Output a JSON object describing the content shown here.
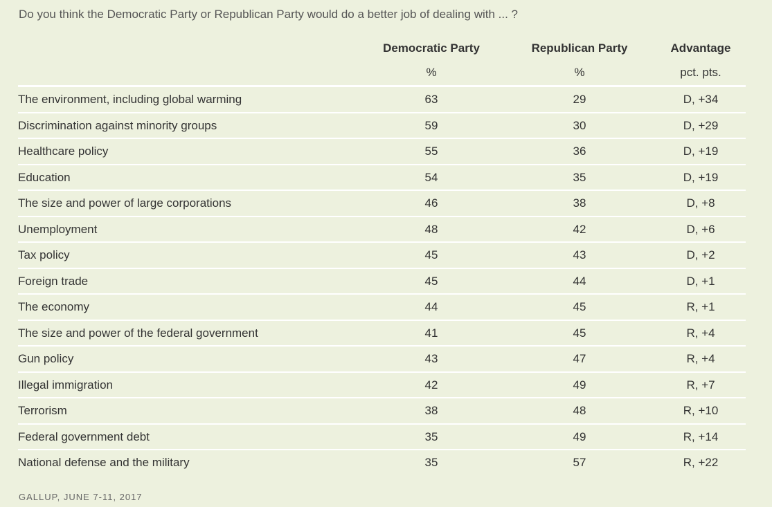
{
  "question": "Do you think the Democratic Party or Republican Party would do a better job of dealing with ... ?",
  "source": "GALLUP, JUNE 7-11, 2017",
  "chart_data": {
    "type": "table",
    "title": "Do you think the Democratic Party or Republican Party would do a better job of dealing with ... ?",
    "columns": [
      {
        "name": "Democratic Party",
        "unit": "%"
      },
      {
        "name": "Republican Party",
        "unit": "%"
      },
      {
        "name": "Advantage",
        "unit": "pct. pts."
      }
    ],
    "rows": [
      {
        "topic": "The environment, including global warming",
        "dem": "63",
        "rep": "29",
        "adv": "D, +34"
      },
      {
        "topic": "Discrimination against minority groups",
        "dem": "59",
        "rep": "30",
        "adv": "D, +29"
      },
      {
        "topic": "Healthcare policy",
        "dem": "55",
        "rep": "36",
        "adv": "D, +19"
      },
      {
        "topic": "Education",
        "dem": "54",
        "rep": "35",
        "adv": "D, +19"
      },
      {
        "topic": "The size and power of large corporations",
        "dem": "46",
        "rep": "38",
        "adv": "D, +8"
      },
      {
        "topic": "Unemployment",
        "dem": "48",
        "rep": "42",
        "adv": "D, +6"
      },
      {
        "topic": "Tax policy",
        "dem": "45",
        "rep": "43",
        "adv": "D, +2"
      },
      {
        "topic": "Foreign trade",
        "dem": "45",
        "rep": "44",
        "adv": "D, +1"
      },
      {
        "topic": "The economy",
        "dem": "44",
        "rep": "45",
        "adv": "R, +1"
      },
      {
        "topic": "The size and power of the federal government",
        "dem": "41",
        "rep": "45",
        "adv": "R, +4"
      },
      {
        "topic": "Gun policy",
        "dem": "43",
        "rep": "47",
        "adv": "R, +4"
      },
      {
        "topic": "Illegal immigration",
        "dem": "42",
        "rep": "49",
        "adv": "R, +7"
      },
      {
        "topic": "Terrorism",
        "dem": "38",
        "rep": "48",
        "adv": "R, +10"
      },
      {
        "topic": "Federal government debt",
        "dem": "35",
        "rep": "49",
        "adv": "R, +14"
      },
      {
        "topic": "National defense and the military",
        "dem": "35",
        "rep": "57",
        "adv": "R, +22"
      }
    ]
  }
}
